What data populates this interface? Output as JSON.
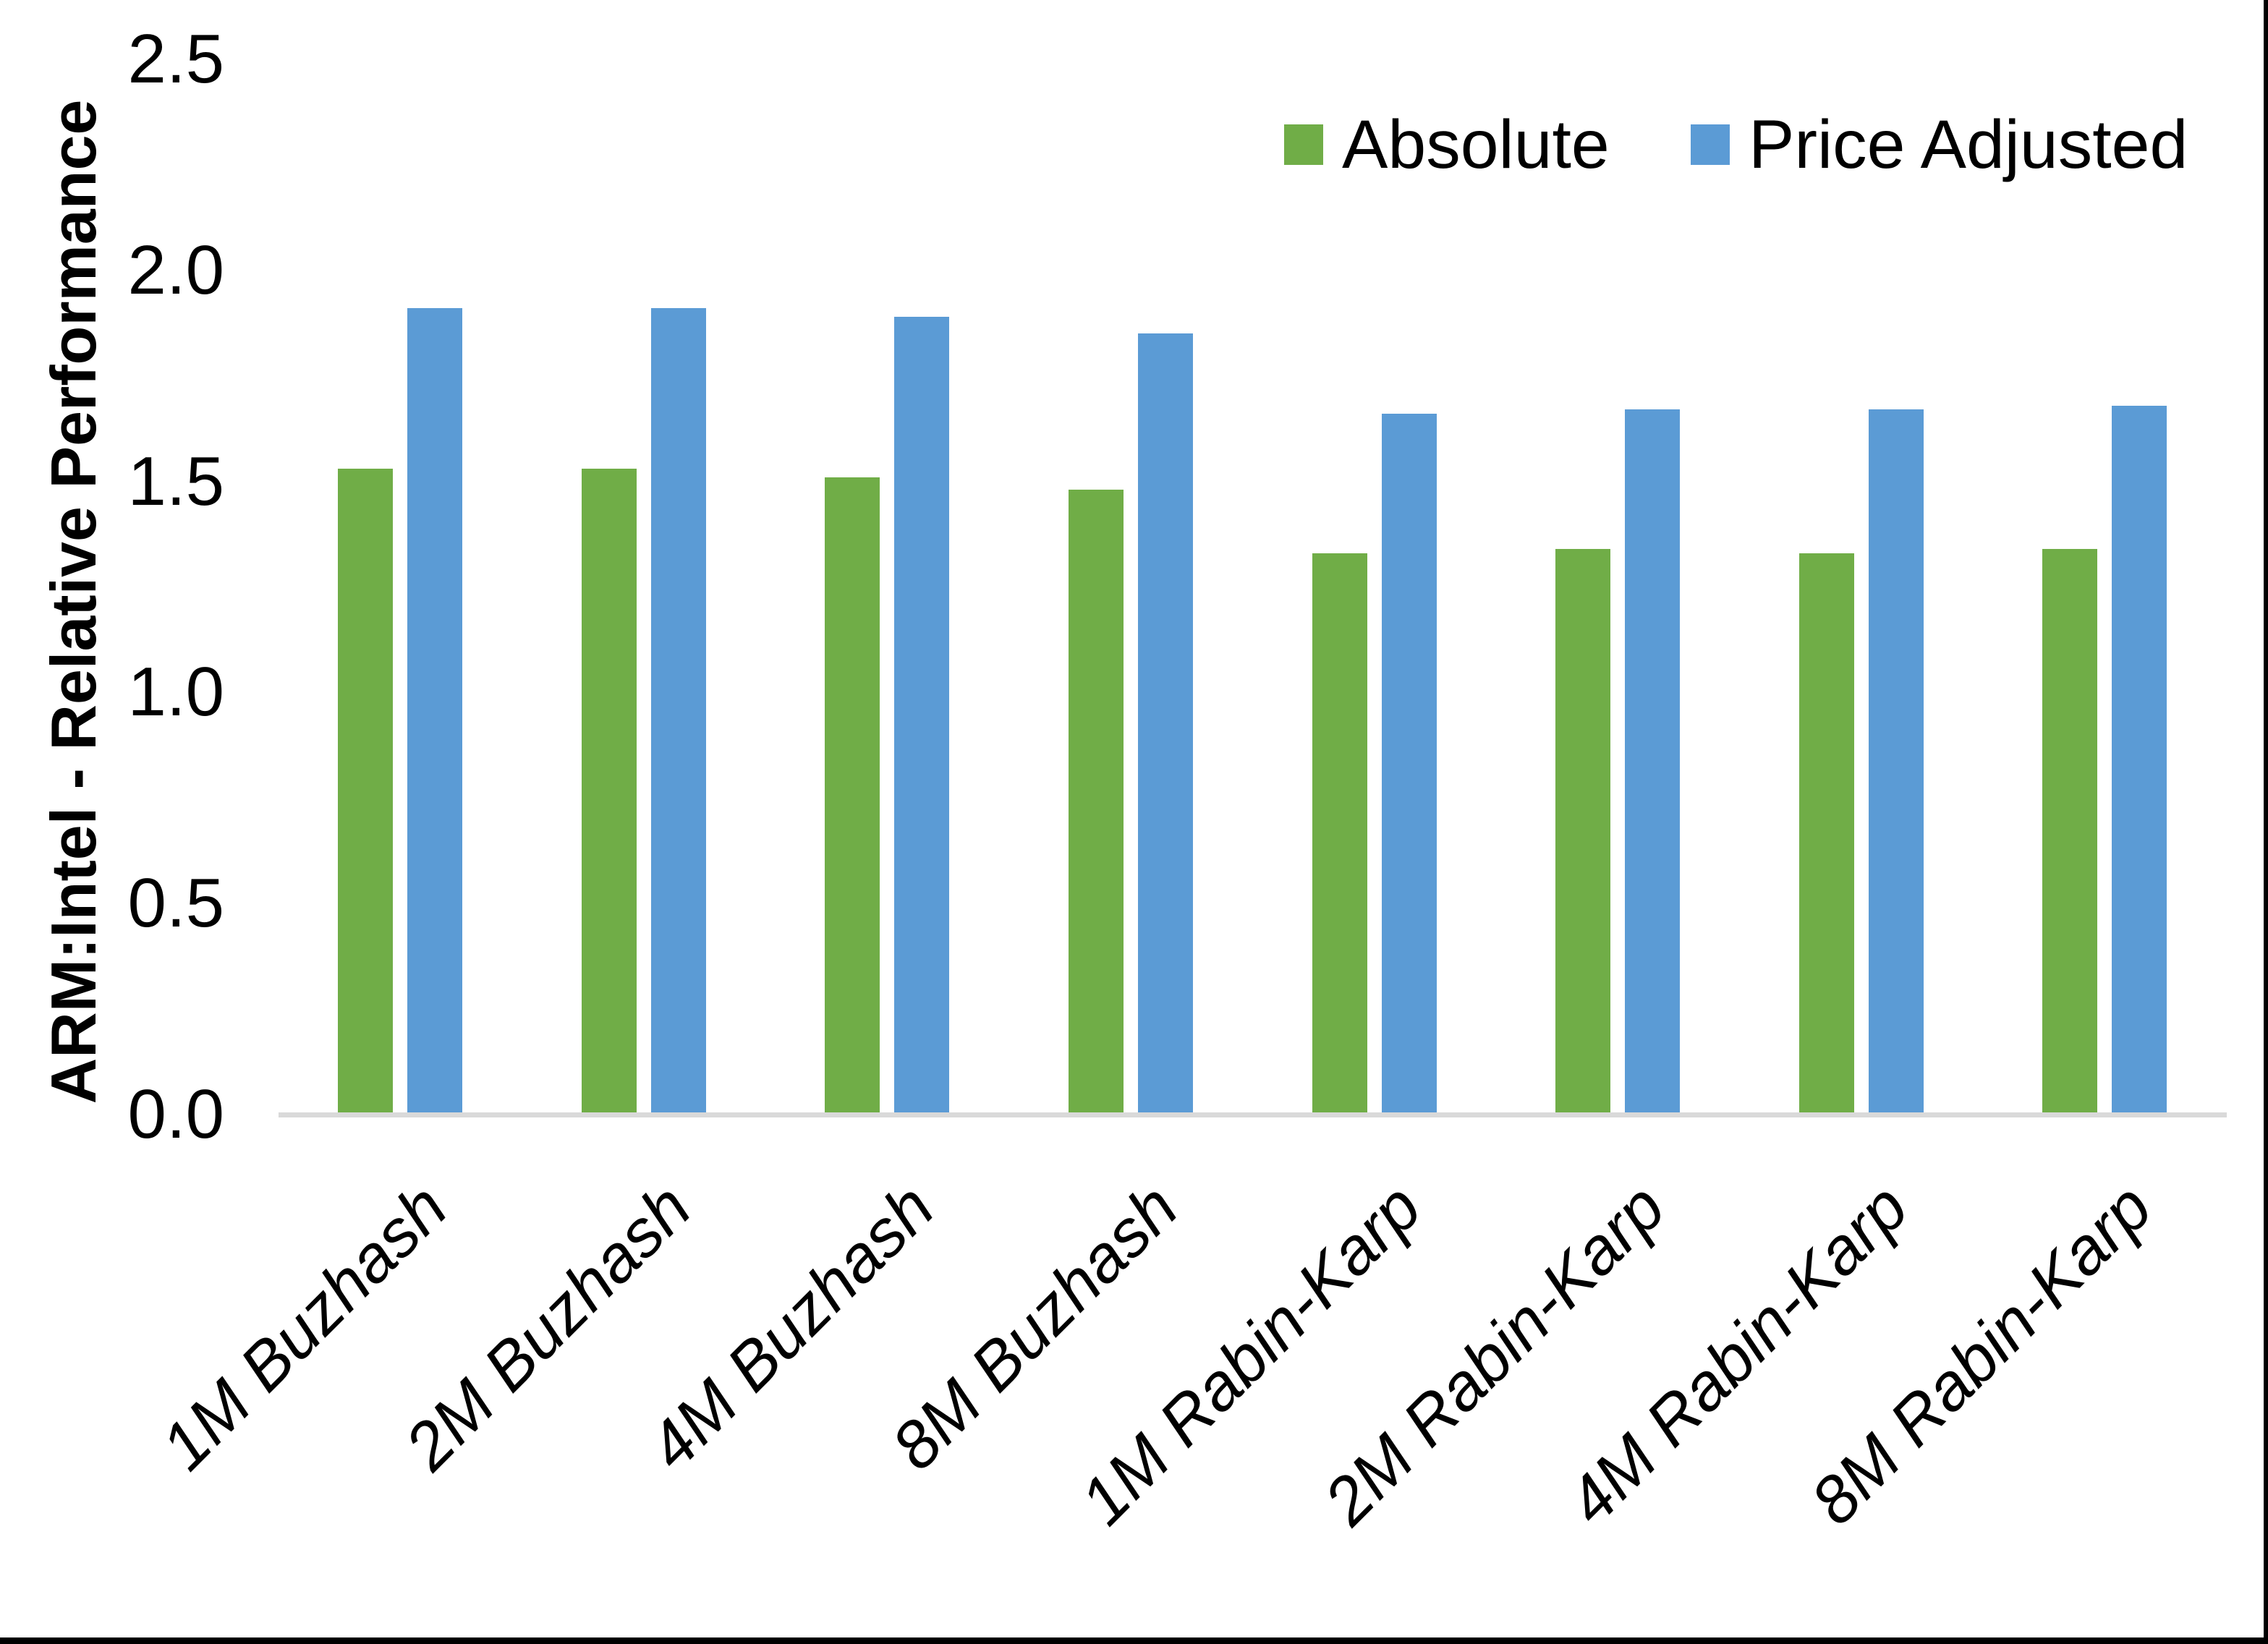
{
  "chart_data": {
    "type": "bar",
    "title": "",
    "xlabel": "",
    "ylabel": "ARM:Intel - Relative Performance",
    "ylim": [
      0,
      2.5
    ],
    "ytick_step": 0.5,
    "ytick_labels": [
      "0.0",
      "0.5",
      "1.0",
      "1.5",
      "2.0",
      "2.5"
    ],
    "grid": false,
    "legend_position": "top-right",
    "categories": [
      "1M Buzhash",
      "2M Buzhash",
      "4M Buzhash",
      "8M Buzhash",
      "1M Rabin-Karp",
      "2M Rabin-Karp",
      "4M Rabin-Karp",
      "8M Rabin-Karp"
    ],
    "series": [
      {
        "name": "Absolute",
        "color": "#70AD47",
        "values": [
          1.53,
          1.53,
          1.51,
          1.48,
          1.33,
          1.34,
          1.33,
          1.34
        ]
      },
      {
        "name": "Price Adjusted",
        "color": "#5B9BD5",
        "values": [
          1.91,
          1.91,
          1.89,
          1.85,
          1.66,
          1.67,
          1.67,
          1.68
        ]
      }
    ],
    "axis_line_color": "#D9D9D9",
    "text_color": "#000000",
    "background_color": "#FFFFFF"
  }
}
